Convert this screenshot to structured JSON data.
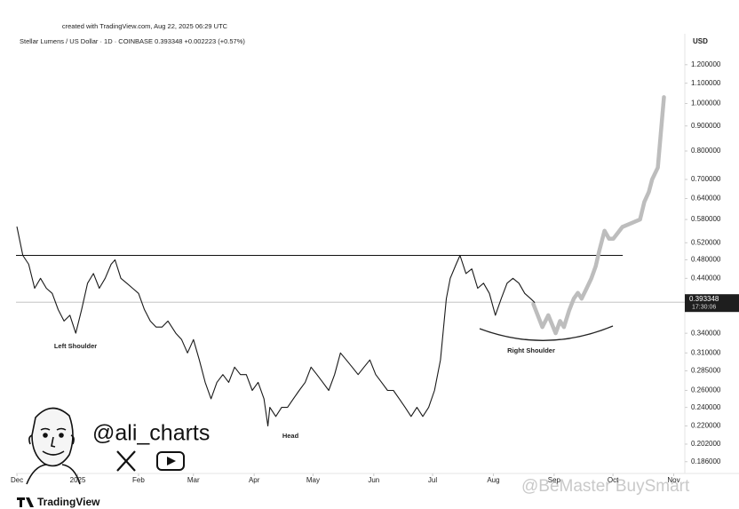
{
  "chart_data": {
    "type": "line",
    "header": "created with TradingView.com, Aug 22, 2025 06:29 UTC",
    "title": "Stellar Lumens / US Dollar · 1D · COINBASE  0.393348  +0.002223 (+0.57%)",
    "y_axis_label": "USD",
    "log_scale": true,
    "grid": false,
    "xlim": [
      -31.5,
      309.2
    ],
    "xticks": [
      {
        "value": -31,
        "label": "Dec"
      },
      {
        "value": 0,
        "label": "2025"
      },
      {
        "value": 31,
        "label": "Feb"
      },
      {
        "value": 59,
        "label": "Mar"
      },
      {
        "value": 90,
        "label": "Apr"
      },
      {
        "value": 120,
        "label": "May"
      },
      {
        "value": 151,
        "label": "Jun"
      },
      {
        "value": 181,
        "label": "Jul"
      },
      {
        "value": 212,
        "label": "Aug"
      },
      {
        "value": 243,
        "label": "Sep"
      },
      {
        "value": 273,
        "label": "Oct"
      },
      {
        "value": 304,
        "label": "Nov"
      }
    ],
    "ylim": [
      0.176,
      1.376
    ],
    "yticks": [
      {
        "value": 1.2,
        "label": "1.200000"
      },
      {
        "value": 1.1,
        "label": "1.100000"
      },
      {
        "value": 1.0,
        "label": "1.000000"
      },
      {
        "value": 0.9,
        "label": "0.900000"
      },
      {
        "value": 0.8,
        "label": "0.800000"
      },
      {
        "value": 0.7,
        "label": "0.700000"
      },
      {
        "value": 0.64,
        "label": "0.640000"
      },
      {
        "value": 0.58,
        "label": "0.580000"
      },
      {
        "value": 0.52,
        "label": "0.520000"
      },
      {
        "value": 0.48,
        "label": "0.480000"
      },
      {
        "value": 0.44,
        "label": "0.440000"
      },
      {
        "value": 0.34,
        "label": "0.340000"
      },
      {
        "value": 0.31,
        "label": "0.310000"
      },
      {
        "value": 0.285,
        "label": "0.285000"
      },
      {
        "value": 0.26,
        "label": "0.260000"
      },
      {
        "value": 0.24,
        "label": "0.240000"
      },
      {
        "value": 0.22,
        "label": "0.220000"
      },
      {
        "value": 0.202,
        "label": "0.202000"
      },
      {
        "value": 0.186,
        "label": "0.186000"
      }
    ],
    "series": [
      {
        "color": "#1a1a1a",
        "x": [
          -31,
          -28,
          -25,
          -22,
          -19,
          -16,
          -13,
          -10,
          -7,
          -4,
          -1,
          2,
          5,
          8,
          11,
          14,
          17,
          19,
          22,
          25,
          28,
          31,
          34,
          37,
          40,
          43,
          46,
          50,
          53,
          56,
          59,
          62,
          65,
          68,
          71,
          74,
          77,
          80,
          83,
          86,
          89,
          92,
          95,
          97,
          98,
          101,
          104,
          107,
          110,
          113,
          116,
          119,
          122,
          125,
          128,
          131,
          134,
          137,
          140,
          143,
          146,
          149,
          152,
          155,
          158,
          161,
          164,
          167,
          170,
          173,
          176,
          179,
          182,
          185,
          188,
          190,
          193,
          195,
          198,
          201,
          204,
          207,
          210,
          213,
          216,
          219,
          222,
          225,
          228,
          231,
          233
        ],
        "values": [
          0.56,
          0.49,
          0.47,
          0.42,
          0.44,
          0.42,
          0.41,
          0.38,
          0.36,
          0.37,
          0.34,
          0.38,
          0.43,
          0.45,
          0.42,
          0.44,
          0.47,
          0.48,
          0.44,
          0.43,
          0.42,
          0.41,
          0.38,
          0.36,
          0.35,
          0.35,
          0.36,
          0.34,
          0.33,
          0.31,
          0.33,
          0.3,
          0.27,
          0.25,
          0.27,
          0.28,
          0.27,
          0.29,
          0.28,
          0.28,
          0.26,
          0.27,
          0.25,
          0.22,
          0.24,
          0.23,
          0.24,
          0.24,
          0.25,
          0.26,
          0.27,
          0.29,
          0.28,
          0.27,
          0.26,
          0.28,
          0.31,
          0.3,
          0.29,
          0.28,
          0.29,
          0.3,
          0.28,
          0.27,
          0.26,
          0.26,
          0.25,
          0.24,
          0.23,
          0.24,
          0.23,
          0.24,
          0.26,
          0.3,
          0.4,
          0.44,
          0.47,
          0.49,
          0.45,
          0.46,
          0.42,
          0.43,
          0.41,
          0.37,
          0.4,
          0.43,
          0.44,
          0.43,
          0.41,
          0.4,
          0.393
        ]
      },
      {
        "color": "#bdbdbd",
        "x": [
          232.4,
          237,
          240,
          243.8,
          246,
          248,
          250.6,
          253,
          255.1,
          257,
          259.6,
          262,
          264.2,
          266,
          268.7,
          271,
          273.2,
          277.8,
          282.3,
          286.8,
          289,
          291.3,
          293,
          295.9,
          299
        ],
        "values": [
          0.39,
          0.35,
          0.37,
          0.34,
          0.36,
          0.35,
          0.378,
          0.4,
          0.411,
          0.4,
          0.42,
          0.44,
          0.466,
          0.5,
          0.55,
          0.53,
          0.53,
          0.56,
          0.57,
          0.58,
          0.63,
          0.66,
          0.7,
          0.74,
          1.03
        ]
      }
    ],
    "neckline": 0.49,
    "current_price": 0.393348,
    "countdown": "17:30:06",
    "annotations": [
      "Left Shoulder",
      "Head",
      "Right Shoulder"
    ],
    "handle": "@ali_charts",
    "brand": "TradingView",
    "watermark": "@BeMaster BuySmart"
  }
}
